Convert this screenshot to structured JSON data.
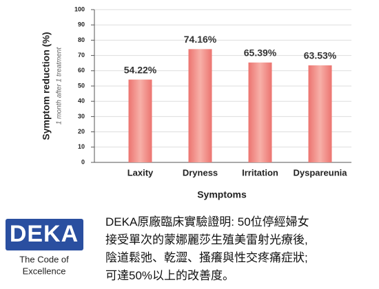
{
  "chart_data": {
    "type": "bar",
    "ylabel": "Symptom reduction (%)",
    "ysublabel": "1 month after 1 treatment",
    "xlabel": "Symptoms",
    "categories": [
      "Laxity",
      "Dryness",
      "Irritation",
      "Dyspareunia"
    ],
    "values": [
      54.22,
      74.16,
      65.39,
      63.53
    ],
    "value_labels": [
      "54.22%",
      "74.16%",
      "65.39%",
      "63.53%"
    ],
    "color": "#ec7470",
    "ylim": [
      0,
      100
    ],
    "yticks": [
      0,
      10,
      20,
      30,
      40,
      50,
      60,
      70,
      80,
      90,
      100
    ],
    "grid": true
  },
  "logo": {
    "text": "DEKA",
    "tagline": [
      "The Code of",
      "Excellence"
    ]
  },
  "caption": [
    "DEKA原廠臨床實驗證明: 50位停經婦女",
    "接受單次的蒙娜麗莎生殖美雷射光療後,",
    "陰道鬆弛、乾澀、搔癢與性交疼痛症狀;",
    "可達50%以上的改善度。"
  ]
}
